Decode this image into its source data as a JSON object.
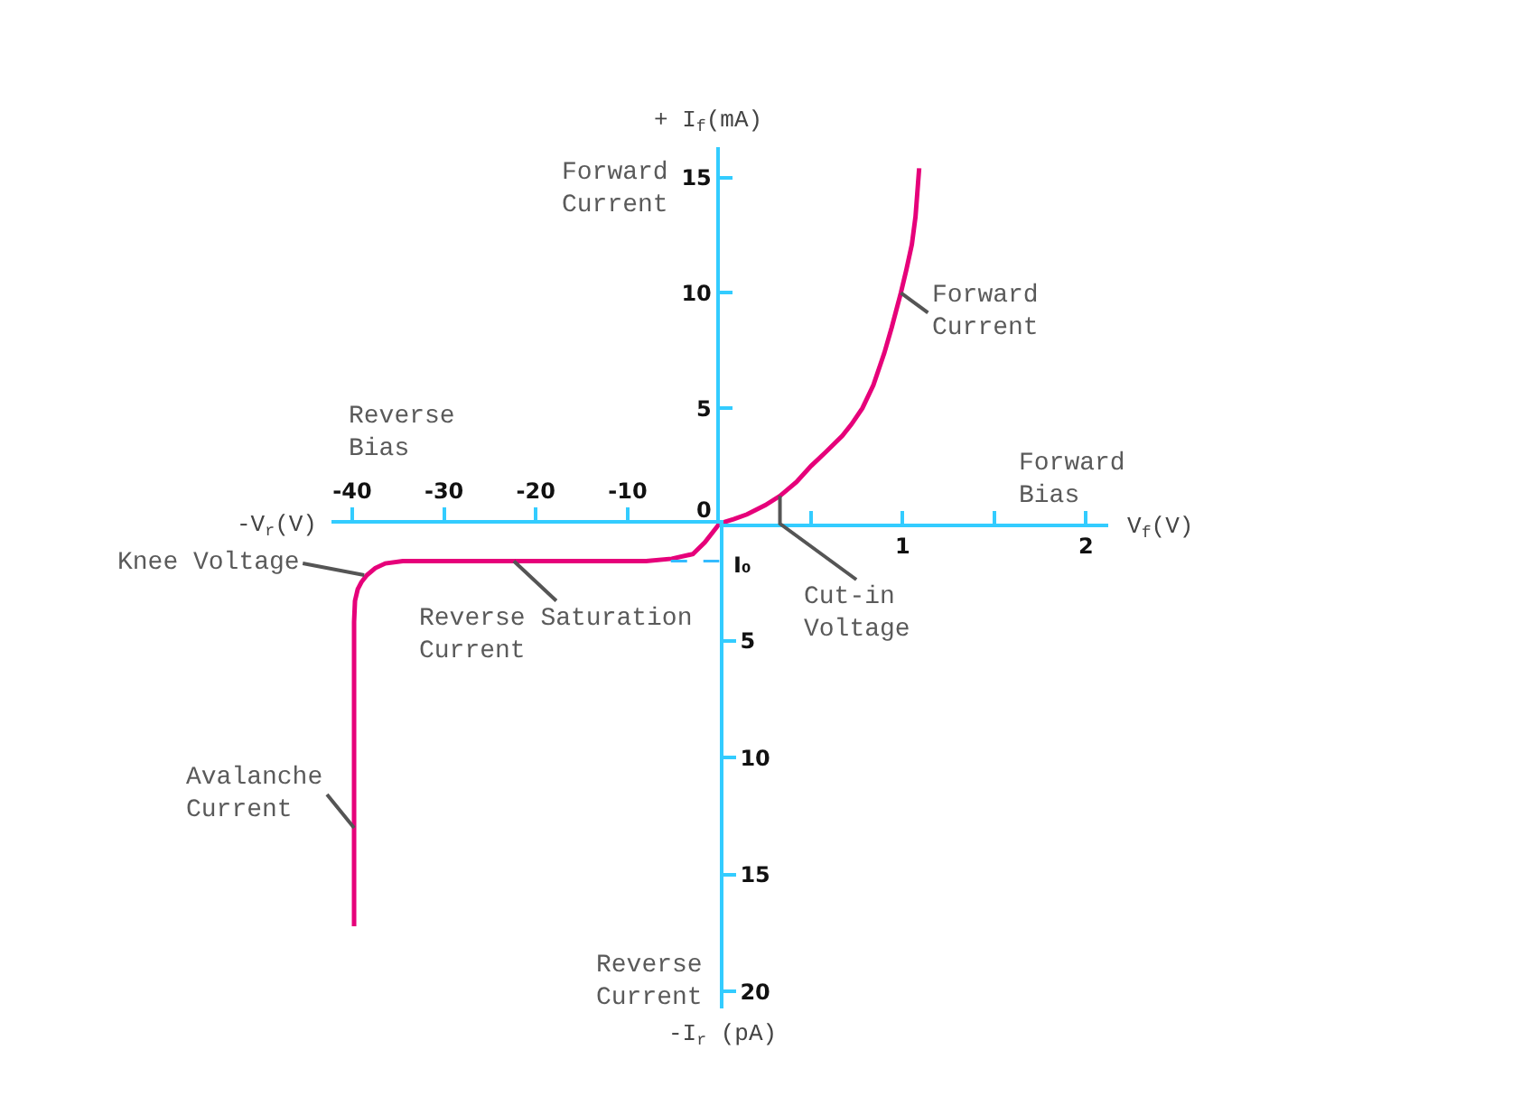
{
  "chart_data": [
    {
      "type": "line",
      "xlabel": "V$_{f}$(V)",
      "ylabel": "+ I$_{f}$(mA)",
      "x": [
        0,
        0.08,
        0.15,
        0.25,
        0.33,
        0.42,
        0.5,
        0.58,
        0.67,
        0.72,
        0.78,
        0.84,
        0.9,
        0.94,
        0.99,
        1.02,
        1.05,
        1.07,
        1.09
      ],
      "series": [
        {
          "color": "#e6007a",
          "values": [
            0,
            0.2,
            0.4,
            0.8,
            1.2,
            1.8,
            2.5,
            3.1,
            3.8,
            4.3,
            5,
            6,
            7.4,
            8.5,
            10,
            11,
            12.1,
            13.3,
            15.4
          ]
        }
      ],
      "xlim": [
        0,
        2.12
      ],
      "ylim": [
        0,
        16.3
      ],
      "xticks": [
        {
          "value": 0.5,
          "label": null
        },
        1,
        {
          "value": 1.5,
          "label": null
        },
        2
      ],
      "yticks": [
        0,
        5,
        10,
        15
      ],
      "annotations": [
        "Forward\nCurrent",
        {
          "text": "Forward\nCurrent",
          "x": 0.99,
          "y": 10
        },
        "Forward\nBias",
        {
          "text": "Cut-in\nVoltage",
          "x": 0.33,
          "y": 1.2
        }
      ]
    },
    {
      "type": "line",
      "xlabel": "-V$_{r}$(V)",
      "ylabel": "-I$_{r}$ (pA)",
      "series": [
        {
          "color": "#e6007a",
          "x": [
            0,
            -1.6,
            -2.9,
            -5.2,
            -8,
            -15,
            -22.4,
            -30,
            -34.5,
            -36.4,
            -37.5,
            -38.4,
            -39,
            -39.4,
            -39.7,
            -39.8,
            -39.8
          ],
          "values": [
            0,
            0.8,
            1.3,
            1.5,
            1.6,
            1.6,
            1.6,
            1.6,
            1.6,
            1.7,
            1.9,
            2.2,
            2.5,
            2.8,
            3.3,
            4.2,
            17.2
          ]
        },
        {
          "color": "#33bbff",
          "x": [
            -5.3,
            0
          ],
          "values": [
            1.6,
            1.6
          ],
          "line_style": "dashed"
        }
      ],
      "xlim": [
        -42.3,
        0
      ],
      "ylim": [
        20.7,
        0
      ],
      "xticks": [
        -40,
        -30,
        -20,
        -10
      ],
      "yticks": [
        5,
        10,
        15,
        20
      ],
      "annotations": [
        "Reverse\nBias",
        {
          "text": "Knee Voltage",
          "x": -38.7,
          "y": 2.2
        },
        {
          "text": "Reverse Saturation\nCurrent",
          "x": -22.4,
          "y": 1.6
        },
        {
          "text": "Avalanche\nCurrent",
          "x": -39.8,
          "y": 13
        },
        "Reverse\nCurrent",
        {
          "text": "I₀",
          "x": 0,
          "y": 1.6
        }
      ]
    }
  ]
}
